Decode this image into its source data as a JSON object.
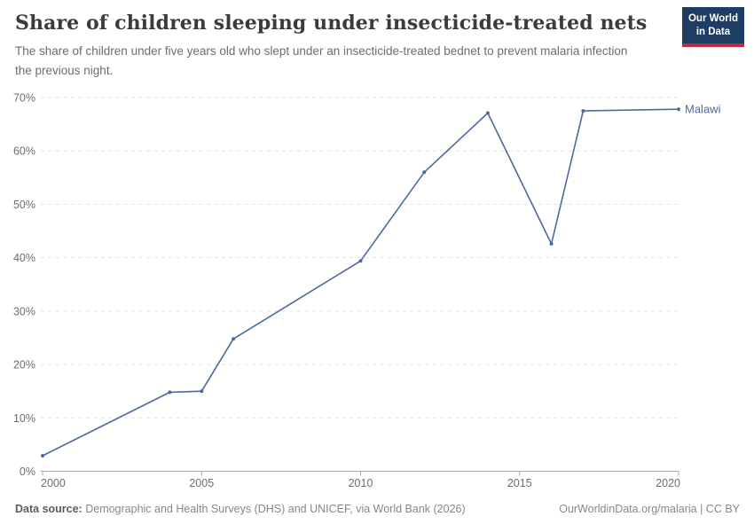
{
  "header": {
    "title": "Share of children sleeping under insecticide-treated nets",
    "subtitle": "The share of children under five years old who slept under an insecticide-treated bednet to prevent malaria infection the previous night.",
    "logo": {
      "line1": "Our World",
      "line2": "in Data"
    }
  },
  "chart_data": {
    "type": "line",
    "title": "Share of children sleeping under insecticide-treated nets",
    "xlabel": "",
    "ylabel": "",
    "xlim": [
      2000,
      2020
    ],
    "ylim": [
      0,
      70
    ],
    "x_ticks": [
      2000,
      2005,
      2010,
      2015,
      2020
    ],
    "y_ticks": [
      0,
      10,
      20,
      30,
      40,
      50,
      60,
      70
    ],
    "y_tick_suffix": "%",
    "grid": "dashed-horizontal",
    "legend_position": "end-of-line-label",
    "series": [
      {
        "name": "Malawi",
        "color": "#4c6a9c",
        "points": [
          [
            2000,
            2.9
          ],
          [
            2004,
            14.8
          ],
          [
            2005,
            15.0
          ],
          [
            2006,
            24.8
          ],
          [
            2010,
            39.4
          ],
          [
            2012,
            56.0
          ],
          [
            2014,
            67.1
          ],
          [
            2016,
            42.6
          ],
          [
            2017,
            67.5
          ],
          [
            2020,
            67.8
          ]
        ]
      }
    ]
  },
  "footer": {
    "source_label": "Data source:",
    "source_text": "Demographic and Health Surveys (DHS) and UNICEF, via World Bank (2026)",
    "credit": "OurWorldinData.org/malaria | CC BY"
  },
  "colors": {
    "line": "#4c6a9c",
    "logo_background": "#1d3d63",
    "logo_bar": "#c0293c",
    "gridline": "#e2e2e2",
    "axis": "#a8a8a8",
    "tick_label": "#6e6e6e"
  }
}
